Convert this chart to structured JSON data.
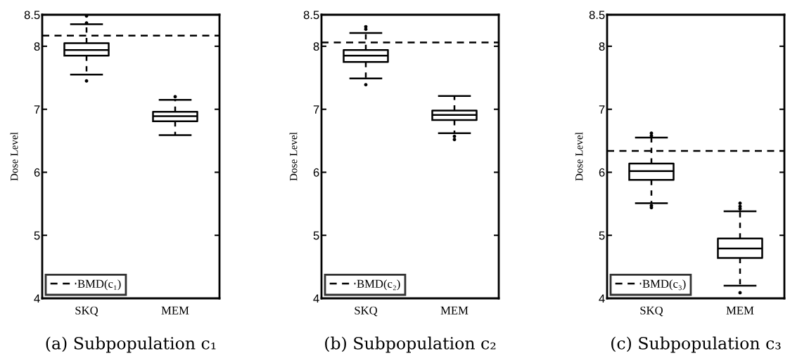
{
  "chart_data": [
    {
      "type": "box",
      "title": "(a) Subpopulation c₁",
      "ylabel": "Dose Level",
      "categories": [
        "SKQ",
        "MEM"
      ],
      "boxes": [
        {
          "low": 7.55,
          "q1": 7.85,
          "median": 7.94,
          "q3": 8.05,
          "high": 8.35,
          "outliers": [
            8.48,
            8.37,
            7.45
          ]
        },
        {
          "low": 6.59,
          "q1": 6.81,
          "median": 6.89,
          "q3": 6.96,
          "high": 7.15,
          "outliers": [
            7.2
          ]
        }
      ],
      "ylim": [
        4,
        8.5
      ],
      "yticks": [
        4,
        5,
        6,
        7,
        8,
        8.5
      ],
      "ref_lines": [
        {
          "axis": "y",
          "value": 8.17,
          "label": "BMD(c₁)",
          "color": "#000000",
          "line_style": "dashed"
        }
      ],
      "legend": "bottom left",
      "grid": false
    },
    {
      "type": "box",
      "title": "(b) Subpopulation c₂",
      "ylabel": "Dose Level",
      "categories": [
        "SKQ",
        "MEM"
      ],
      "boxes": [
        {
          "low": 7.49,
          "q1": 7.75,
          "median": 7.85,
          "q3": 7.94,
          "high": 8.21,
          "outliers": [
            8.31,
            8.27,
            7.39
          ]
        },
        {
          "low": 6.62,
          "q1": 6.83,
          "median": 6.91,
          "q3": 6.98,
          "high": 7.21,
          "outliers": [
            6.57,
            6.52
          ]
        }
      ],
      "ylim": [
        4,
        8.5
      ],
      "yticks": [
        4,
        5,
        6,
        7,
        8,
        8.5
      ],
      "ref_lines": [
        {
          "axis": "y",
          "value": 8.06,
          "label": "BMD(c₂)",
          "color": "#000000",
          "line_style": "dashed"
        }
      ],
      "legend": "bottom left",
      "grid": false
    },
    {
      "type": "box",
      "title": "(c) Subpopulation c₃",
      "ylabel": "Dose Level",
      "categories": [
        "SKQ",
        "MEM"
      ],
      "boxes": [
        {
          "low": 5.51,
          "q1": 5.88,
          "median": 6.02,
          "q3": 6.14,
          "high": 6.55,
          "outliers": [
            6.62,
            6.58,
            5.47,
            5.44
          ]
        },
        {
          "low": 4.2,
          "q1": 4.64,
          "median": 4.79,
          "q3": 4.95,
          "high": 5.38,
          "outliers": [
            5.51,
            5.46,
            5.42,
            4.09
          ]
        }
      ],
      "ylim": [
        4,
        8.5
      ],
      "yticks": [
        4,
        5,
        6,
        7,
        8,
        8.5
      ],
      "ref_lines": [
        {
          "axis": "y",
          "value": 6.34,
          "label": "BMD(c₃)",
          "color": "#000000",
          "line_style": "dashed"
        }
      ],
      "legend": "bottom left",
      "grid": false
    }
  ]
}
